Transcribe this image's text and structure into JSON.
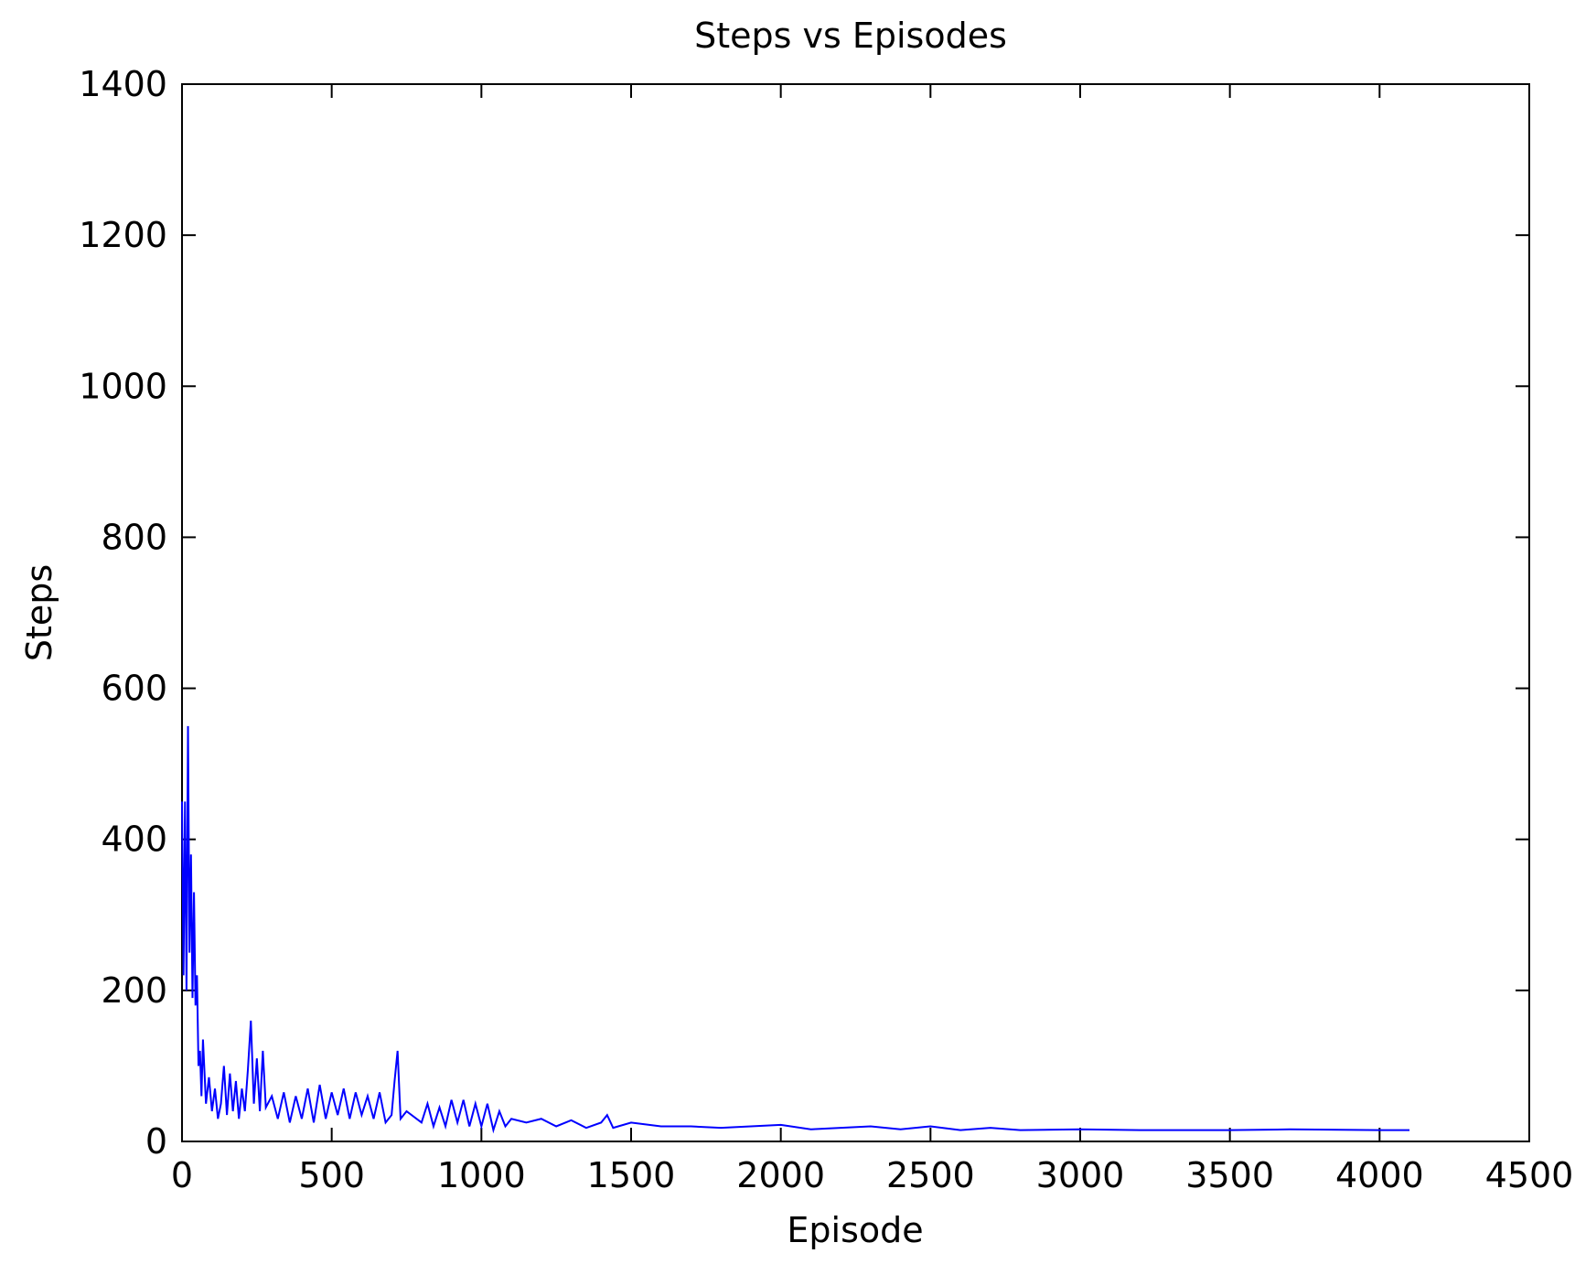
{
  "chart_data": {
    "type": "line",
    "title": "Steps vs Episodes",
    "x_label": "Episode",
    "y_label": "Steps",
    "x": [
      0,
      5,
      10,
      15,
      20,
      25,
      30,
      35,
      40,
      45,
      50,
      55,
      60,
      65,
      70,
      80,
      90,
      100,
      110,
      120,
      130,
      140,
      150,
      160,
      170,
      180,
      190,
      200,
      210,
      220,
      230,
      240,
      250,
      260,
      270,
      280,
      300,
      320,
      340,
      360,
      380,
      400,
      420,
      440,
      460,
      480,
      500,
      520,
      540,
      560,
      580,
      600,
      620,
      640,
      660,
      680,
      700,
      710,
      720,
      730,
      750,
      800,
      820,
      840,
      860,
      880,
      900,
      920,
      940,
      960,
      980,
      1000,
      1020,
      1040,
      1060,
      1080,
      1100,
      1150,
      1200,
      1250,
      1300,
      1350,
      1400,
      1420,
      1440,
      1500,
      1600,
      1700,
      1800,
      1900,
      2000,
      2100,
      2200,
      2300,
      2400,
      2500,
      2600,
      2700,
      2800,
      3000,
      3200,
      3500,
      3700,
      4000,
      4100
    ],
    "series": [
      {
        "name": "Steps",
        "color": "#0000ff",
        "values": [
          450,
          220,
          450,
          200,
          550,
          250,
          380,
          190,
          330,
          180,
          220,
          100,
          120,
          60,
          135,
          50,
          85,
          40,
          70,
          30,
          50,
          100,
          35,
          90,
          40,
          80,
          30,
          70,
          40,
          95,
          160,
          50,
          110,
          40,
          120,
          45,
          60,
          30,
          65,
          25,
          60,
          30,
          70,
          25,
          75,
          30,
          65,
          35,
          70,
          30,
          65,
          35,
          60,
          30,
          65,
          25,
          35,
          80,
          120,
          30,
          40,
          25,
          50,
          20,
          45,
          20,
          55,
          25,
          55,
          20,
          50,
          20,
          50,
          15,
          40,
          20,
          30,
          25,
          30,
          20,
          28,
          18,
          25,
          35,
          18,
          25,
          20,
          20,
          18,
          20,
          22,
          16,
          18,
          20,
          16,
          20,
          15,
          18,
          15,
          16,
          15,
          15,
          16,
          15,
          15
        ]
      }
    ],
    "xlim": [
      0,
      4500
    ],
    "ylim": [
      0,
      1400
    ],
    "xticks": [
      0,
      500,
      1000,
      1500,
      2000,
      2500,
      3000,
      3500,
      4000,
      4500
    ],
    "yticks": [
      0,
      200,
      400,
      600,
      800,
      1000,
      1200,
      1400
    ]
  }
}
